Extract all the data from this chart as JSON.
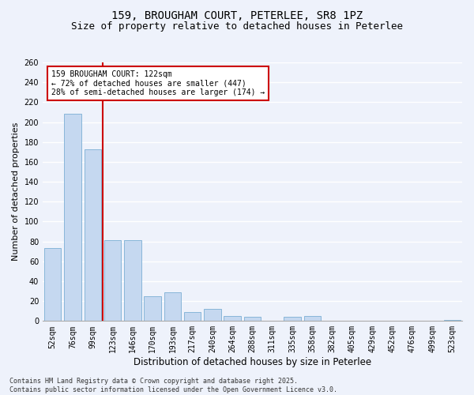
{
  "title_line1": "159, BROUGHAM COURT, PETERLEE, SR8 1PZ",
  "title_line2": "Size of property relative to detached houses in Peterlee",
  "xlabel": "Distribution of detached houses by size in Peterlee",
  "ylabel": "Number of detached properties",
  "categories": [
    "52sqm",
    "76sqm",
    "99sqm",
    "123sqm",
    "146sqm",
    "170sqm",
    "193sqm",
    "217sqm",
    "240sqm",
    "264sqm",
    "288sqm",
    "311sqm",
    "335sqm",
    "358sqm",
    "382sqm",
    "405sqm",
    "429sqm",
    "452sqm",
    "476sqm",
    "499sqm",
    "523sqm"
  ],
  "values": [
    73,
    208,
    173,
    81,
    81,
    25,
    29,
    9,
    12,
    5,
    4,
    0,
    4,
    5,
    0,
    0,
    0,
    0,
    0,
    0,
    1
  ],
  "bar_color": "#c5d8f0",
  "bar_edge_color": "#7bafd4",
  "background_color": "#eef2fb",
  "grid_color": "#ffffff",
  "ylim": [
    0,
    260
  ],
  "yticks": [
    0,
    20,
    40,
    60,
    80,
    100,
    120,
    140,
    160,
    180,
    200,
    220,
    240,
    260
  ],
  "red_line_x": 2.5,
  "annotation_text": "159 BROUGHAM COURT: 122sqm\n← 72% of detached houses are smaller (447)\n28% of semi-detached houses are larger (174) →",
  "annotation_box_color": "#ffffff",
  "annotation_edge_color": "#cc0000",
  "footer_line1": "Contains HM Land Registry data © Crown copyright and database right 2025.",
  "footer_line2": "Contains public sector information licensed under the Open Government Licence v3.0.",
  "title_fontsize": 10,
  "subtitle_fontsize": 9,
  "tick_fontsize": 7,
  "ylabel_fontsize": 8,
  "xlabel_fontsize": 8.5,
  "annotation_fontsize": 7,
  "footer_fontsize": 6
}
